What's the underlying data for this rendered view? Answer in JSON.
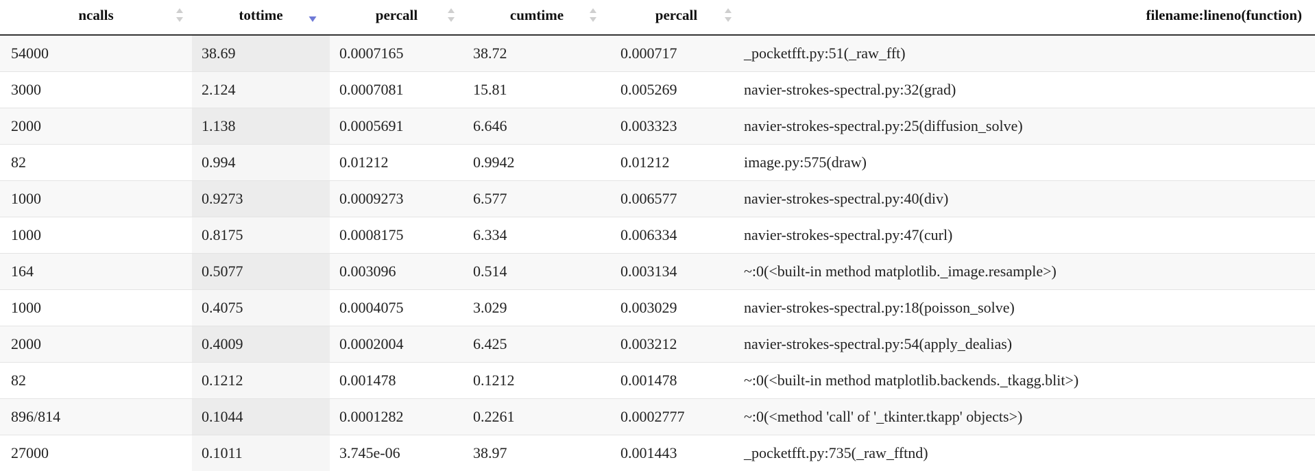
{
  "table": {
    "columns": [
      {
        "label": "ncalls",
        "sort": "none"
      },
      {
        "label": "tottime",
        "sort": "descending"
      },
      {
        "label": "percall",
        "sort": "none"
      },
      {
        "label": "cumtime",
        "sort": "none"
      },
      {
        "label": "percall",
        "sort": "none"
      },
      {
        "label": "filename:lineno(function)",
        "sort": "none"
      }
    ],
    "rows": [
      [
        "54000",
        "38.69",
        "0.0007165",
        "38.72",
        "0.000717",
        "_pocketfft.py:51(_raw_fft)"
      ],
      [
        "3000",
        "2.124",
        "0.0007081",
        "15.81",
        "0.005269",
        "navier-strokes-spectral.py:32(grad)"
      ],
      [
        "2000",
        "1.138",
        "0.0005691",
        "6.646",
        "0.003323",
        "navier-strokes-spectral.py:25(diffusion_solve)"
      ],
      [
        "82",
        "0.994",
        "0.01212",
        "0.9942",
        "0.01212",
        "image.py:575(draw)"
      ],
      [
        "1000",
        "0.9273",
        "0.0009273",
        "6.577",
        "0.006577",
        "navier-strokes-spectral.py:40(div)"
      ],
      [
        "1000",
        "0.8175",
        "0.0008175",
        "6.334",
        "0.006334",
        "navier-strokes-spectral.py:47(curl)"
      ],
      [
        "164",
        "0.5077",
        "0.003096",
        "0.514",
        "0.003134",
        "~:0(<built-in method matplotlib._image.resample>)"
      ],
      [
        "1000",
        "0.4075",
        "0.0004075",
        "3.029",
        "0.003029",
        "navier-strokes-spectral.py:18(poisson_solve)"
      ],
      [
        "2000",
        "0.4009",
        "0.0002004",
        "6.425",
        "0.003212",
        "navier-strokes-spectral.py:54(apply_dealias)"
      ],
      [
        "82",
        "0.1212",
        "0.001478",
        "0.1212",
        "0.001478",
        "~:0(<built-in method matplotlib.backends._tkagg.blit>)"
      ],
      [
        "896/814",
        "0.1044",
        "0.0001282",
        "0.2261",
        "0.0002777",
        "~:0(<method 'call' of '_tkinter.tkapp' objects>)"
      ],
      [
        "27000",
        "0.1011",
        "3.745e-06",
        "38.97",
        "0.001443",
        "_pocketfft.py:735(_raw_fftnd)"
      ]
    ]
  },
  "colors": {
    "sort_active": "#6e79d6",
    "sort_inactive": "#cfcfcf"
  }
}
